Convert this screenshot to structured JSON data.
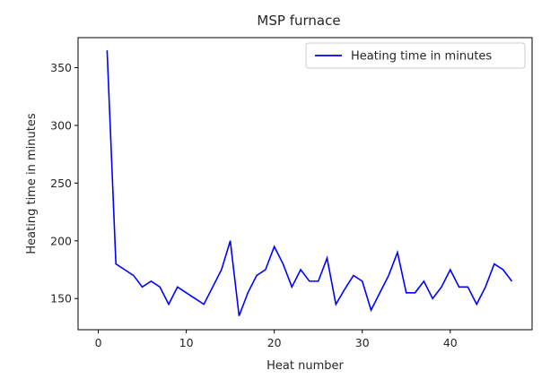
{
  "chart_data": {
    "type": "line",
    "title": "MSP furnace",
    "xlabel": "Heat number",
    "ylabel": "Heating time in minutes",
    "xlim": [
      -2.3,
      49.3
    ],
    "ylim": [
      123,
      376
    ],
    "xticks": [
      0,
      10,
      20,
      30,
      40
    ],
    "yticks": [
      150,
      200,
      250,
      300,
      350
    ],
    "grid": false,
    "legend_position": "top-right",
    "series": [
      {
        "name": "Heating time in minutes",
        "color": "#0000ff",
        "x": [
          1,
          2,
          3,
          4,
          5,
          6,
          7,
          8,
          9,
          10,
          11,
          12,
          13,
          14,
          15,
          16,
          17,
          18,
          19,
          20,
          21,
          22,
          23,
          24,
          25,
          26,
          27,
          28,
          29,
          30,
          31,
          32,
          33,
          34,
          35,
          36,
          37,
          38,
          39,
          40,
          41,
          42,
          43,
          44,
          45,
          46,
          47
        ],
        "y": [
          365,
          180,
          175,
          170,
          160,
          165,
          160,
          145,
          160,
          155,
          150,
          145,
          160,
          175,
          200,
          135,
          155,
          170,
          175,
          195,
          180,
          160,
          175,
          165,
          165,
          185,
          145,
          158,
          170,
          165,
          140,
          155,
          170,
          190,
          155,
          155,
          165,
          150,
          160,
          175,
          160,
          160,
          145,
          160,
          180,
          175,
          165
        ]
      }
    ]
  }
}
